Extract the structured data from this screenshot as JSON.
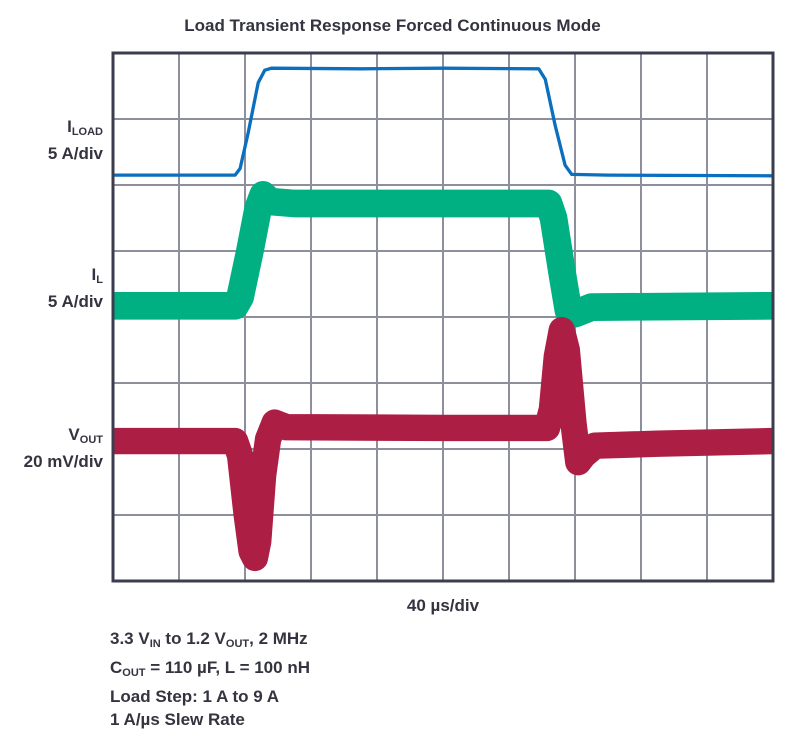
{
  "chart_data": {
    "type": "line",
    "title": "Load Transient Response Forced Continuous Mode",
    "xlabel": "40 µs/div",
    "x_unit": "µs",
    "xlim": [
      0,
      400
    ],
    "y_unit": "div",
    "ylim": [
      0,
      8
    ],
    "grid": true,
    "x_divisions": 10,
    "y_divisions": 8,
    "series": [
      {
        "name": "ILOAD",
        "label_main": "I",
        "label_sub": "LOAD",
        "scale": "5 A/div",
        "color": "#0a6fbe",
        "band": 0.05,
        "points": [
          [
            0,
            6.15
          ],
          [
            74,
            6.15
          ],
          [
            77,
            6.25
          ],
          [
            82,
            6.8
          ],
          [
            88,
            7.55
          ],
          [
            92,
            7.74
          ],
          [
            96,
            7.77
          ],
          [
            150,
            7.76
          ],
          [
            200,
            7.77
          ],
          [
            258,
            7.76
          ],
          [
            262,
            7.6
          ],
          [
            268,
            6.9
          ],
          [
            274,
            6.3
          ],
          [
            278,
            6.16
          ],
          [
            300,
            6.15
          ],
          [
            400,
            6.14
          ]
        ]
      },
      {
        "name": "IL",
        "label_main": "I",
        "label_sub": "L",
        "scale": "5 A/div",
        "color": "#00b082",
        "band": 0.42,
        "points": [
          [
            0,
            4.17
          ],
          [
            74,
            4.17
          ],
          [
            77,
            4.3
          ],
          [
            83,
            5.0
          ],
          [
            88,
            5.65
          ],
          [
            91,
            5.85
          ],
          [
            95,
            5.75
          ],
          [
            110,
            5.72
          ],
          [
            200,
            5.72
          ],
          [
            264,
            5.72
          ],
          [
            267,
            5.5
          ],
          [
            272,
            4.7
          ],
          [
            276,
            4.1
          ],
          [
            280,
            4.05
          ],
          [
            290,
            4.15
          ],
          [
            400,
            4.17
          ]
        ]
      },
      {
        "name": "VOUT",
        "label_main": "V",
        "label_sub": "OUT",
        "scale": "20 mV/div",
        "color": "#ad1e45",
        "band": 0.4,
        "points": [
          [
            0,
            2.12
          ],
          [
            74,
            2.12
          ],
          [
            77,
            1.9
          ],
          [
            81,
            1.0
          ],
          [
            84,
            0.45
          ],
          [
            86,
            0.35
          ],
          [
            88,
            0.6
          ],
          [
            91,
            1.6
          ],
          [
            94,
            2.15
          ],
          [
            98,
            2.4
          ],
          [
            105,
            2.33
          ],
          [
            200,
            2.32
          ],
          [
            263,
            2.32
          ],
          [
            266,
            2.6
          ],
          [
            269,
            3.4
          ],
          [
            272,
            3.8
          ],
          [
            275,
            3.5
          ],
          [
            279,
            2.4
          ],
          [
            282,
            1.8
          ],
          [
            285,
            1.9
          ],
          [
            292,
            2.05
          ],
          [
            330,
            2.08
          ],
          [
            400,
            2.12
          ]
        ]
      }
    ]
  },
  "notes": [
    [
      {
        "t": "3.3 V"
      },
      {
        "s": "IN"
      },
      {
        "t": " to 1.2 V"
      },
      {
        "s": "OUT"
      },
      {
        "t": ", 2 MHz"
      }
    ],
    [
      {
        "t": "C"
      },
      {
        "s": "OUT"
      },
      {
        "t": " = 110 µF, L = 100 nH"
      }
    ],
    [
      {
        "t": "Load Step: 1 A to 9 A"
      }
    ],
    [
      {
        "t": "1 A/µs Slew Rate"
      }
    ]
  ],
  "colors": {
    "grid": "#8d909c",
    "frame": "#3b3d4e",
    "text": "#33343f"
  }
}
